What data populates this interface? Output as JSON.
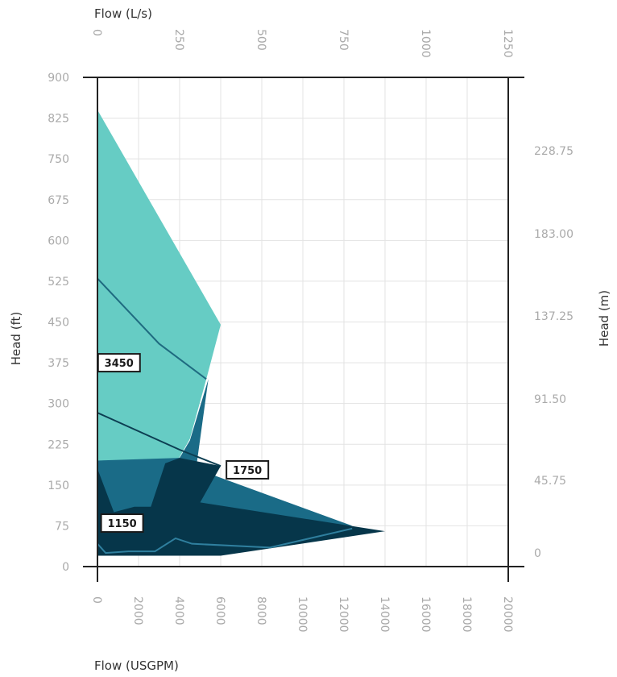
{
  "chart_data": {
    "type": "area",
    "title": "",
    "axes": {
      "left": {
        "label": "Head (ft)",
        "ticks": [
          0,
          75,
          150,
          225,
          300,
          375,
          450,
          525,
          600,
          675,
          750,
          825,
          900
        ],
        "range": [
          0,
          900
        ]
      },
      "right": {
        "label": "Head (m)",
        "ticks": [
          "0",
          "45.75",
          "91.50",
          "137.25",
          "183.00",
          "228.75"
        ]
      },
      "bottom": {
        "label": "Flow (USGPM)",
        "ticks": [
          0,
          2000,
          4000,
          6000,
          8000,
          10000,
          12000,
          14000,
          16000,
          18000,
          20000
        ],
        "range": [
          0,
          20000
        ]
      },
      "top": {
        "label": "Flow (L/s)",
        "ticks": [
          0,
          250,
          500,
          750,
          1000,
          1250
        ]
      }
    },
    "grid": true,
    "colors": {
      "s3450": "#66ccc4",
      "s1750": "#1a6b87",
      "s1150": "#06364a",
      "line3450": "#1f6b80",
      "line1750": "#0c3e52",
      "line1150": "#2f7f9e",
      "axis": "#222222",
      "grid": "#e3e3e3"
    },
    "series": [
      {
        "name": "3450",
        "points": [
          [
            0,
            840
          ],
          [
            6000,
            445
          ],
          [
            5300,
            345
          ],
          [
            4500,
            235
          ],
          [
            3900,
            195
          ],
          [
            3000,
            75
          ],
          [
            0,
            75
          ]
        ]
      },
      {
        "name": "1750",
        "points": [
          [
            0,
            195
          ],
          [
            4000,
            200
          ],
          [
            4500,
            232
          ],
          [
            5400,
            345
          ],
          [
            4800,
            180
          ],
          [
            12400,
            75
          ],
          [
            1800,
            40
          ],
          [
            0,
            40
          ]
        ]
      },
      {
        "name": "1150",
        "points": [
          [
            0,
            180
          ],
          [
            800,
            100
          ],
          [
            1800,
            110
          ],
          [
            2600,
            110
          ],
          [
            3300,
            190
          ],
          [
            4000,
            200
          ],
          [
            6000,
            185
          ],
          [
            5000,
            118
          ],
          [
            14000,
            65
          ],
          [
            6000,
            20
          ],
          [
            0,
            20
          ]
        ]
      }
    ],
    "lines": [
      {
        "series": "3450",
        "points": [
          [
            0,
            530
          ],
          [
            3000,
            410
          ],
          [
            5300,
            345
          ]
        ]
      },
      {
        "series": "1750",
        "points": [
          [
            0,
            283
          ],
          [
            4000,
            215
          ],
          [
            6000,
            185
          ]
        ]
      },
      {
        "series": "1150",
        "points": [
          [
            0,
            42
          ],
          [
            400,
            25
          ],
          [
            1500,
            28
          ],
          [
            2800,
            28
          ],
          [
            3800,
            52
          ],
          [
            4600,
            42
          ],
          [
            8400,
            35
          ],
          [
            12400,
            70
          ]
        ]
      }
    ],
    "labels": [
      {
        "text": "3450",
        "x": 1050,
        "y": 375
      },
      {
        "text": "1750",
        "x": 7300,
        "y": 178
      },
      {
        "text": "1150",
        "x": 1200,
        "y": 80
      }
    ]
  }
}
